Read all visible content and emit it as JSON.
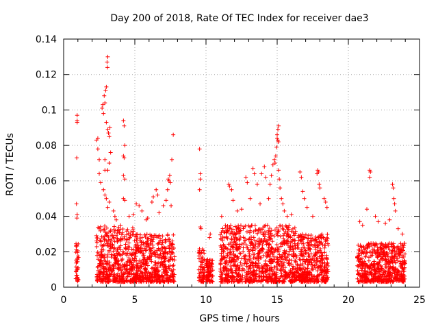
{
  "chart_data": {
    "type": "scatter",
    "title": "Day 200 of 2018, Rate Of TEC Index for receiver dae3",
    "xlabel": "GPS time / hours",
    "ylabel": "ROTI / TECUs",
    "xlim": [
      0,
      25
    ],
    "ylim": [
      0,
      0.14
    ],
    "x_ticks": [
      0,
      5,
      10,
      15,
      20,
      25
    ],
    "y_ticks": [
      0,
      0.02,
      0.04,
      0.06,
      0.08,
      0.1,
      0.12,
      0.14
    ],
    "x_tick_labels": [
      "0",
      "5",
      "10",
      "15",
      "20",
      "25"
    ],
    "y_tick_labels": [
      "0",
      "0.02",
      "0.04",
      "0.06",
      "0.08",
      "0.1",
      "0.12",
      "0.14"
    ],
    "grid": true,
    "marker": "+",
    "color": "#ff0000",
    "clusters": [
      {
        "x_range": [
          0.85,
          1.05
        ],
        "y_max": 0.025
      },
      {
        "x_range": [
          2.3,
          4.9
        ],
        "y_max": 0.035
      },
      {
        "x_range": [
          4.9,
          7.8
        ],
        "y_max": 0.03
      },
      {
        "x_range": [
          9.5,
          9.9
        ],
        "y_max": 0.022
      },
      {
        "x_range": [
          10.0,
          10.5
        ],
        "y_max": 0.016
      },
      {
        "x_range": [
          11.0,
          16.3
        ],
        "y_max": 0.035
      },
      {
        "x_range": [
          16.3,
          18.6
        ],
        "y_max": 0.03
      },
      {
        "x_range": [
          20.6,
          24.0
        ],
        "y_max": 0.025
      }
    ],
    "series": [
      {
        "points": [
          [
            0.95,
            0.097
          ],
          [
            0.95,
            0.094
          ],
          [
            0.95,
            0.093
          ],
          [
            0.92,
            0.073
          ],
          [
            0.9,
            0.047
          ],
          [
            0.95,
            0.041
          ],
          [
            0.93,
            0.039
          ],
          [
            2.3,
            0.083
          ],
          [
            2.4,
            0.084
          ],
          [
            2.4,
            0.078
          ],
          [
            2.5,
            0.072
          ],
          [
            2.5,
            0.064
          ],
          [
            2.6,
            0.059
          ],
          [
            2.7,
            0.101
          ],
          [
            2.75,
            0.103
          ],
          [
            2.8,
            0.098
          ],
          [
            2.85,
            0.108
          ],
          [
            2.9,
            0.104
          ],
          [
            2.95,
            0.111
          ],
          [
            3.0,
            0.113
          ],
          [
            3.05,
            0.127
          ],
          [
            3.1,
            0.13
          ],
          [
            3.08,
            0.124
          ],
          [
            3.0,
            0.093
          ],
          [
            3.1,
            0.089
          ],
          [
            3.15,
            0.087
          ],
          [
            3.2,
            0.085
          ],
          [
            3.25,
            0.09
          ],
          [
            3.3,
            0.076
          ],
          [
            3.2,
            0.07
          ],
          [
            3.1,
            0.066
          ],
          [
            2.9,
            0.066
          ],
          [
            2.9,
            0.072
          ],
          [
            2.8,
            0.055
          ],
          [
            2.9,
            0.052
          ],
          [
            3.0,
            0.05
          ],
          [
            3.2,
            0.048
          ],
          [
            3.1,
            0.045
          ],
          [
            3.5,
            0.043
          ],
          [
            3.6,
            0.04
          ],
          [
            3.7,
            0.038
          ],
          [
            4.2,
            0.094
          ],
          [
            4.25,
            0.091
          ],
          [
            4.3,
            0.08
          ],
          [
            4.2,
            0.074
          ],
          [
            4.25,
            0.073
          ],
          [
            4.2,
            0.063
          ],
          [
            4.3,
            0.061
          ],
          [
            4.2,
            0.05
          ],
          [
            4.3,
            0.049
          ],
          [
            4.6,
            0.04
          ],
          [
            4.9,
            0.041
          ],
          [
            5.1,
            0.047
          ],
          [
            5.3,
            0.046
          ],
          [
            5.5,
            0.043
          ],
          [
            5.8,
            0.038
          ],
          [
            5.9,
            0.039
          ],
          [
            6.2,
            0.048
          ],
          [
            6.3,
            0.051
          ],
          [
            6.5,
            0.055
          ],
          [
            6.6,
            0.052
          ],
          [
            6.7,
            0.042
          ],
          [
            7.0,
            0.046
          ],
          [
            7.2,
            0.049
          ],
          [
            7.3,
            0.055
          ],
          [
            7.35,
            0.061
          ],
          [
            7.4,
            0.06
          ],
          [
            7.5,
            0.059
          ],
          [
            7.45,
            0.063
          ],
          [
            7.6,
            0.072
          ],
          [
            7.7,
            0.086
          ],
          [
            7.55,
            0.046
          ],
          [
            9.55,
            0.078
          ],
          [
            9.6,
            0.064
          ],
          [
            9.6,
            0.061
          ],
          [
            9.55,
            0.055
          ],
          [
            9.6,
            0.034
          ],
          [
            9.65,
            0.033
          ],
          [
            10.3,
            0.03
          ],
          [
            10.25,
            0.028
          ],
          [
            11.1,
            0.04
          ],
          [
            11.6,
            0.058
          ],
          [
            11.65,
            0.057
          ],
          [
            11.8,
            0.055
          ],
          [
            11.9,
            0.049
          ],
          [
            12.2,
            0.043
          ],
          [
            12.5,
            0.044
          ],
          [
            12.8,
            0.062
          ],
          [
            12.9,
            0.059
          ],
          [
            13.1,
            0.05
          ],
          [
            13.3,
            0.067
          ],
          [
            13.4,
            0.064
          ],
          [
            13.6,
            0.058
          ],
          [
            13.8,
            0.047
          ],
          [
            13.9,
            0.064
          ],
          [
            14.1,
            0.068
          ],
          [
            14.2,
            0.062
          ],
          [
            14.4,
            0.05
          ],
          [
            14.5,
            0.058
          ],
          [
            14.6,
            0.063
          ],
          [
            14.7,
            0.069
          ],
          [
            14.8,
            0.072
          ],
          [
            14.85,
            0.07
          ],
          [
            14.9,
            0.074
          ],
          [
            14.95,
            0.079
          ],
          [
            15.0,
            0.084
          ],
          [
            15.05,
            0.083
          ],
          [
            15.0,
            0.086
          ],
          [
            15.05,
            0.089
          ],
          [
            15.1,
            0.091
          ],
          [
            15.08,
            0.082
          ],
          [
            15.1,
            0.066
          ],
          [
            15.15,
            0.061
          ],
          [
            15.2,
            0.056
          ],
          [
            15.3,
            0.05
          ],
          [
            15.4,
            0.047
          ],
          [
            15.5,
            0.043
          ],
          [
            15.7,
            0.04
          ],
          [
            16.0,
            0.041
          ],
          [
            16.6,
            0.065
          ],
          [
            16.7,
            0.062
          ],
          [
            16.8,
            0.054
          ],
          [
            16.9,
            0.05
          ],
          [
            17.1,
            0.045
          ],
          [
            17.5,
            0.04
          ],
          [
            17.8,
            0.064
          ],
          [
            17.85,
            0.066
          ],
          [
            17.9,
            0.065
          ],
          [
            17.95,
            0.058
          ],
          [
            18.0,
            0.056
          ],
          [
            18.3,
            0.05
          ],
          [
            18.4,
            0.048
          ],
          [
            18.5,
            0.045
          ],
          [
            20.8,
            0.037
          ],
          [
            21.0,
            0.035
          ],
          [
            21.3,
            0.044
          ],
          [
            21.5,
            0.066
          ],
          [
            21.55,
            0.065
          ],
          [
            21.5,
            0.062
          ],
          [
            21.9,
            0.04
          ],
          [
            22.1,
            0.037
          ],
          [
            22.6,
            0.036
          ],
          [
            22.9,
            0.038
          ],
          [
            23.1,
            0.058
          ],
          [
            23.15,
            0.056
          ],
          [
            23.2,
            0.05
          ],
          [
            23.25,
            0.047
          ],
          [
            23.3,
            0.043
          ],
          [
            23.5,
            0.033
          ],
          [
            23.8,
            0.03
          ]
        ]
      }
    ]
  }
}
